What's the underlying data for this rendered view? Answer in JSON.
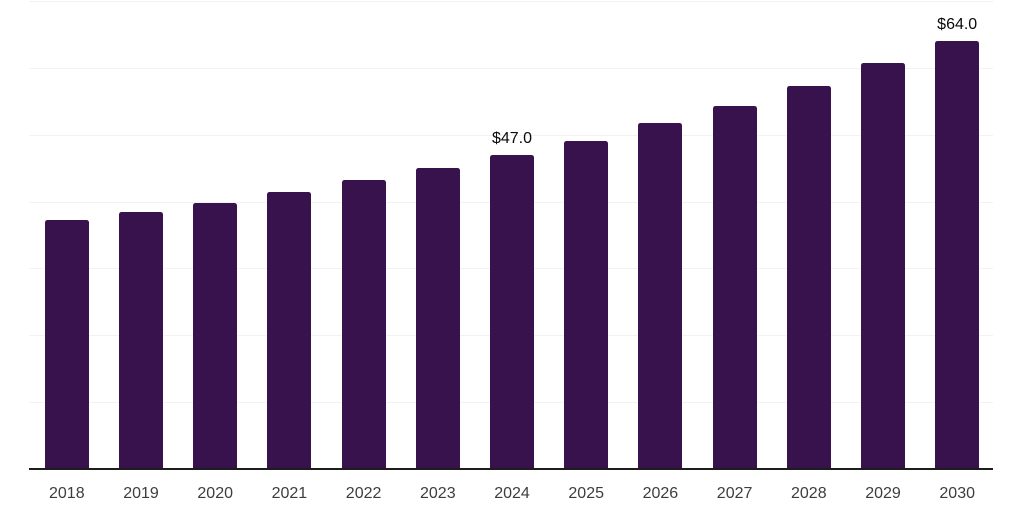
{
  "chart_data": {
    "type": "bar",
    "title": "",
    "xlabel": "",
    "ylabel": "",
    "categories": [
      "2018",
      "2019",
      "2020",
      "2021",
      "2022",
      "2023",
      "2024",
      "2025",
      "2026",
      "2027",
      "2028",
      "2029",
      "2030"
    ],
    "values": [
      37.2,
      38.4,
      39.8,
      41.5,
      43.2,
      45.0,
      47.0,
      49.1,
      51.7,
      54.3,
      57.3,
      60.7,
      64.0
    ],
    "bar_value_labels": {
      "2024": "$47.0",
      "2030": "$64.0"
    },
    "ylim": [
      0,
      70
    ],
    "grid": {
      "horizontal": true,
      "interval": 10,
      "y_tick_labels_visible": false
    },
    "legend_position": "none",
    "colors": {
      "bar_fill": "#38124d",
      "gridline": "#f2f2f2",
      "axis_line": "#1d1d1d",
      "x_tick_label": "#3d3d3d",
      "bar_value_label": "#0a0a0a",
      "background": "#ffffff"
    }
  }
}
